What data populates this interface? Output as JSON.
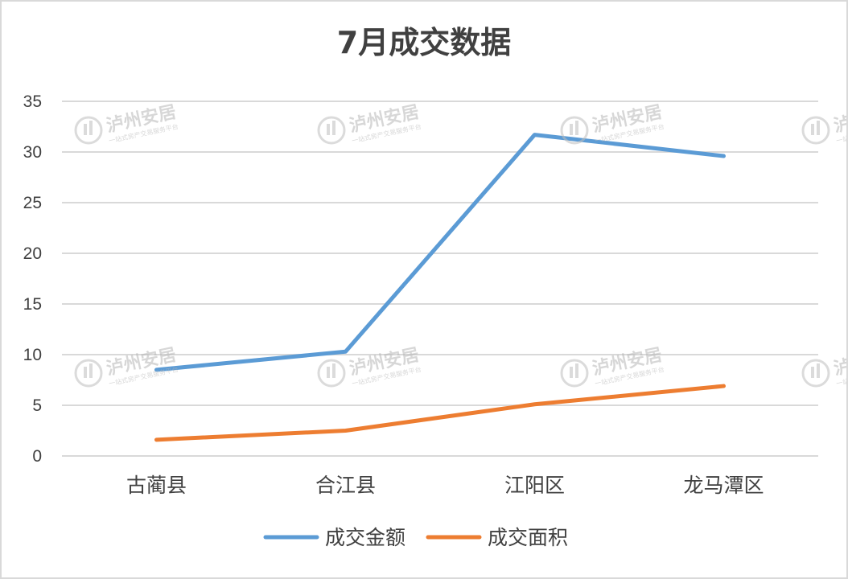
{
  "chart_data": {
    "type": "line",
    "title": "7月成交数据",
    "categories": [
      "古蔺县",
      "合江县",
      "江阳区",
      "龙马潭区"
    ],
    "series": [
      {
        "name": "成交金额",
        "values": [
          8.5,
          10.3,
          31.7,
          29.6
        ],
        "color": "#5b9bd5"
      },
      {
        "name": "成交面积",
        "values": [
          1.6,
          2.5,
          5.1,
          6.9
        ],
        "color": "#ed7d31"
      }
    ],
    "yticks": [
      0,
      5,
      10,
      15,
      20,
      25,
      30,
      35
    ],
    "ylim": [
      0,
      35
    ],
    "grid": true,
    "legend_position": "bottom",
    "xlabel": "",
    "ylabel": ""
  },
  "watermark": {
    "text": "泸州安居",
    "subtext": "一站式房产交易服务平台",
    "icon": "building-logo-icon"
  }
}
